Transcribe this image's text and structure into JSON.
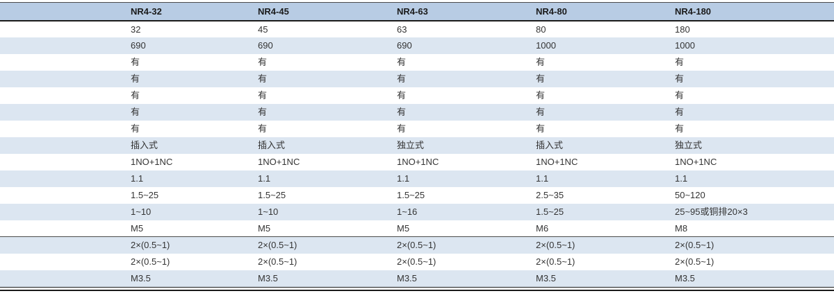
{
  "colors": {
    "header-bg": "#b8cce4",
    "stripe-bg": "#dce6f1",
    "row-bg": "#ffffff",
    "text": "#333333",
    "header-text": "#1a1a1a",
    "line": "#4a4a4a",
    "heavy-line": "#1a1a1a"
  },
  "table": {
    "header": [
      "",
      "NR4-32",
      "NR4-45",
      "NR4-63",
      "NR4-80",
      "NR4-180"
    ],
    "rows": [
      [
        "",
        "32",
        "45",
        "63",
        "80",
        "180"
      ],
      [
        "",
        "690",
        "690",
        "690",
        "1000",
        "1000"
      ],
      [
        "",
        "有",
        "有",
        "有",
        "有",
        "有"
      ],
      [
        "",
        "有",
        "有",
        "有",
        "有",
        "有"
      ],
      [
        "",
        "有",
        "有",
        "有",
        "有",
        "有"
      ],
      [
        "",
        "有",
        "有",
        "有",
        "有",
        "有"
      ],
      [
        "",
        "有",
        "有",
        "有",
        "有",
        "有"
      ],
      [
        "",
        "插入式",
        "插入式",
        "独立式",
        "插入式",
        "独立式"
      ],
      [
        "",
        "1NO+1NC",
        "1NO+1NC",
        "1NO+1NC",
        "1NO+1NC",
        "1NO+1NC"
      ],
      [
        "",
        "1.1",
        "1.1",
        "1.1",
        "1.1",
        "1.1"
      ],
      [
        "",
        "1.5~25",
        "1.5~25",
        "1.5~25",
        "2.5~35",
        "50~120"
      ],
      [
        "",
        "1~10",
        "1~10",
        "1~16",
        "1.5~25",
        "25~95或铜排20×3"
      ],
      [
        "",
        "M5",
        "M5",
        "M5",
        "M6",
        "M8"
      ],
      [
        "",
        "2×(0.5~1)",
        "2×(0.5~1)",
        "2×(0.5~1)",
        "2×(0.5~1)",
        "2×(0.5~1)"
      ],
      [
        "",
        "2×(0.5~1)",
        "2×(0.5~1)",
        "2×(0.5~1)",
        "2×(0.5~1)",
        "2×(0.5~1)"
      ],
      [
        "",
        "M3.5",
        "M3.5",
        "M3.5",
        "M3.5",
        "M3.5"
      ]
    ]
  }
}
